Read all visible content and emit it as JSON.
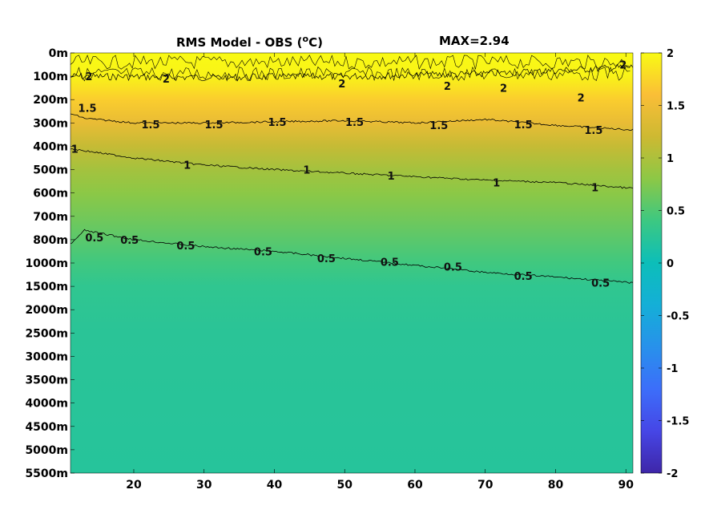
{
  "chart_data": {
    "type": "heatmap",
    "title_main": "RMS Model - OBS (",
    "title_sup": "o",
    "title_unit": "C)",
    "max_label": "MAX=2.94",
    "y_ticks": [
      "0m",
      "100m",
      "200m",
      "300m",
      "400m",
      "500m",
      "600m",
      "700m",
      "800m",
      "1000m",
      "1500m",
      "2000m",
      "2500m",
      "3000m",
      "3500m",
      "4000m",
      "4500m",
      "5000m",
      "5500m"
    ],
    "x_ticks": [
      20,
      30,
      40,
      50,
      60,
      70,
      80,
      90
    ],
    "xlim": [
      11,
      91
    ],
    "colorbar": {
      "range": [
        -2,
        2
      ],
      "ticks": [
        "2",
        "1.5",
        "1",
        "0.5",
        "0",
        "-0.5",
        "-1",
        "-1.5",
        "-2"
      ]
    },
    "layers": [
      {
        "depth_index": 0,
        "value": 2.1
      },
      {
        "depth_index": 1,
        "value": 1.95
      },
      {
        "depth_index": 2,
        "value": 1.7
      },
      {
        "depth_index": 3,
        "value": 1.45
      },
      {
        "depth_index": 4,
        "value": 1.15
      },
      {
        "depth_index": 5,
        "value": 0.95
      },
      {
        "depth_index": 6,
        "value": 0.8
      },
      {
        "depth_index": 7,
        "value": 0.68
      },
      {
        "depth_index": 8,
        "value": 0.55
      },
      {
        "depth_index": 9,
        "value": 0.42
      },
      {
        "depth_index": 10,
        "value": 0.3
      },
      {
        "depth_index": 12,
        "value": 0.25
      },
      {
        "depth_index": 18,
        "value": 0.22
      }
    ],
    "contours": [
      {
        "level": "2",
        "depth_index": [
          [
            11,
            1.0
          ],
          [
            30,
            1.05
          ],
          [
            50,
            1.0
          ],
          [
            70,
            0.9
          ],
          [
            91,
            0.6
          ]
        ],
        "labels": [
          [
            14,
            1.0
          ],
          [
            25,
            1.1
          ],
          [
            50,
            1.3
          ],
          [
            65,
            1.4
          ],
          [
            73,
            1.5
          ],
          [
            84,
            1.9
          ],
          [
            90,
            0.5
          ]
        ]
      },
      {
        "level": "1.5",
        "depth_index": [
          [
            11,
            2.6
          ],
          [
            13,
            2.8
          ],
          [
            20,
            3.0
          ],
          [
            30,
            3.0
          ],
          [
            40,
            2.95
          ],
          [
            50,
            2.9
          ],
          [
            60,
            3.0
          ],
          [
            70,
            2.85
          ],
          [
            80,
            3.1
          ],
          [
            91,
            3.3
          ]
        ],
        "labels": [
          [
            13,
            2.35
          ],
          [
            22,
            3.05
          ],
          [
            31,
            3.05
          ],
          [
            40,
            2.95
          ],
          [
            51,
            2.95
          ],
          [
            63,
            3.1
          ],
          [
            75,
            3.05
          ],
          [
            85,
            3.3
          ]
        ]
      },
      {
        "level": "1",
        "depth_index": [
          [
            11,
            4.1
          ],
          [
            20,
            4.5
          ],
          [
            30,
            4.8
          ],
          [
            40,
            5.0
          ],
          [
            50,
            5.15
          ],
          [
            60,
            5.3
          ],
          [
            70,
            5.45
          ],
          [
            80,
            5.55
          ],
          [
            91,
            5.8
          ]
        ],
        "labels": [
          [
            12,
            4.1
          ],
          [
            28,
            4.8
          ],
          [
            45,
            5.0
          ],
          [
            57,
            5.25
          ],
          [
            72,
            5.55
          ],
          [
            86,
            5.75
          ]
        ]
      },
      {
        "level": "0.5",
        "depth_index": [
          [
            11,
            8.2
          ],
          [
            13,
            7.6
          ],
          [
            20,
            8.0
          ],
          [
            30,
            8.3
          ],
          [
            40,
            8.5
          ],
          [
            50,
            8.8
          ],
          [
            60,
            9.1
          ],
          [
            70,
            9.4
          ],
          [
            80,
            9.6
          ],
          [
            91,
            9.85
          ]
        ],
        "labels": [
          [
            14,
            7.9
          ],
          [
            19,
            8.0
          ],
          [
            27,
            8.25
          ],
          [
            38,
            8.5
          ],
          [
            47,
            8.8
          ],
          [
            56,
            8.95
          ],
          [
            65,
            9.15
          ],
          [
            75,
            9.55
          ],
          [
            86,
            9.85
          ]
        ]
      }
    ]
  }
}
